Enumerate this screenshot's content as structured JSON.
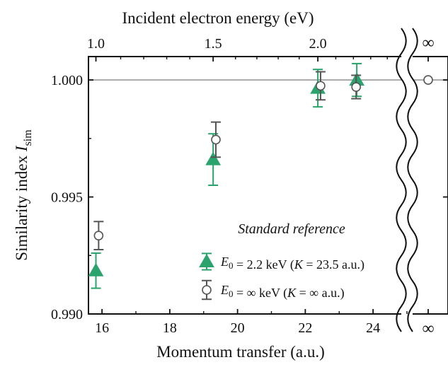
{
  "chart_data": {
    "type": "scatter",
    "xlabel": "Momentum transfer (a.u.)",
    "top_axis_label": "Incident electron energy (eV)",
    "ylabel": "Similarity index ",
    "ylabel_italic": "I",
    "ylabel_sub": "sim",
    "xlim": [
      15.6,
      25.0
    ],
    "ylim": [
      0.99,
      1.001
    ],
    "xticks": [
      16,
      18,
      20,
      22,
      24
    ],
    "yticks": [
      0.99,
      0.995,
      1.0
    ],
    "ytick_labels": [
      "0.990",
      "0.995",
      "1.000"
    ],
    "top_ticks": [
      {
        "label": "1.0",
        "x": 15.82
      },
      {
        "label": "1.5",
        "x": 19.28
      },
      {
        "label": "2.0",
        "x": 22.37
      }
    ],
    "top_minor_ticks": [
      16.55,
      17.23,
      17.91,
      18.59,
      19.94,
      20.57,
      21.2,
      21.82,
      22.9,
      23.42,
      23.93,
      24.42
    ],
    "reference_line_y": 1.0,
    "infinity_label": "∞",
    "legend": {
      "title": "Standard reference",
      "entries": [
        {
          "symbol": "filled-triangle",
          "color": "#2aa46c",
          "parts": [
            {
              "t": "E",
              "i": true
            },
            {
              "t": "0",
              "sub": true
            },
            {
              "t": " = 2.2 keV ("
            },
            {
              "t": "K",
              "i": true
            },
            {
              "t": " = 23.5 a.u.)"
            }
          ]
        },
        {
          "symbol": "open-circle",
          "color": "#555555",
          "parts": [
            {
              "t": "E",
              "i": true
            },
            {
              "t": "0",
              "sub": true
            },
            {
              "t": " = ∞ keV ("
            },
            {
              "t": "K",
              "i": true
            },
            {
              "t": " = ∞ a.u.)"
            }
          ]
        }
      ]
    },
    "series": [
      {
        "name": "E0 = 2.2 keV (K = 23.5 a.u.)",
        "marker": "triangle",
        "color": "#2aa46c",
        "points": [
          {
            "x": 15.82,
            "y": 0.99185,
            "err": 0.00075
          },
          {
            "x": 19.28,
            "y": 0.9966,
            "err": 0.0011
          },
          {
            "x": 22.37,
            "y": 0.99965,
            "err": 0.0008
          },
          {
            "x": 23.52,
            "y": 1.0,
            "err": 0.0007
          }
        ]
      },
      {
        "name": "E0 = ∞ keV (K = ∞ a.u.)",
        "marker": "open-circle",
        "color": "#555555",
        "infinity_point": {
          "y": 1.0
        },
        "points": [
          {
            "x": 15.9,
            "y": 0.99335,
            "err": 0.0006
          },
          {
            "x": 19.36,
            "y": 0.99745,
            "err": 0.00075
          },
          {
            "x": 22.45,
            "y": 0.99975,
            "err": 0.0006
          },
          {
            "x": 23.5,
            "y": 0.9997,
            "err": 0.0005
          }
        ]
      }
    ]
  }
}
